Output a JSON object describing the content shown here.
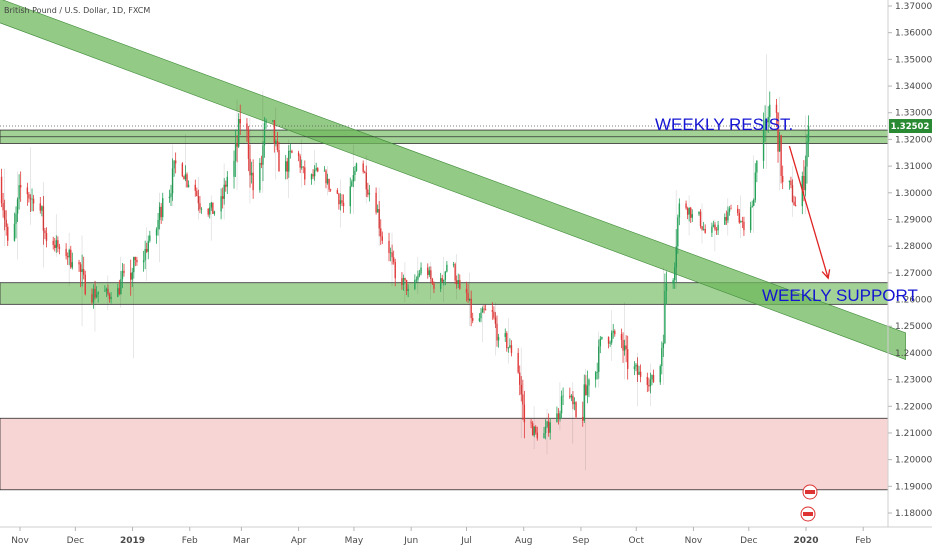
{
  "chart_data": {
    "type": "candlestick",
    "title": "British Pound / U.S. Dollar, 1D, FXCM",
    "x_ticks": [
      "Nov",
      "Dec",
      "2019",
      "Feb",
      "Mar",
      "Apr",
      "May",
      "Jun",
      "Jul",
      "Aug",
      "Sep",
      "Oct",
      "Nov",
      "Dec",
      "2020",
      "Feb"
    ],
    "y_ticks": [
      "1.37000",
      "1.36000",
      "1.35000",
      "1.34000",
      "1.33000",
      "1.32000",
      "1.31000",
      "1.30000",
      "1.29000",
      "1.28000",
      "1.27000",
      "1.26000",
      "1.25000",
      "1.24000",
      "1.23000",
      "1.22000",
      "1.21000",
      "1.20000",
      "1.19000",
      "1.18000"
    ],
    "ylim": [
      1.175,
      1.372
    ],
    "last_price": "1.32502",
    "last_price_value": 1.32502,
    "resistance_line_value": 1.321,
    "zones": [
      {
        "name": "weekly-resistance-zone",
        "from": 1.3185,
        "to": 1.3235,
        "color": "#7cbf6a"
      },
      {
        "name": "weekly-support-zone",
        "from": 1.2582,
        "to": 1.2663,
        "color": "#7cbf6a"
      },
      {
        "name": "demand-zone",
        "from": 1.1887,
        "to": 1.2155,
        "color": "#f4c7c7"
      }
    ],
    "trend_channel": {
      "color": "#6fb85c",
      "start_date": "2018-10-16",
      "start_top": 1.374,
      "start_bottom": 1.365,
      "end_date": "2020-02-24",
      "end_top": 1.2475,
      "end_bottom": 1.2375
    },
    "forecast_arrow": {
      "from_date": "2019-12-23",
      "from_value": 1.3175,
      "to_date": "2020-01-13",
      "to_value": 1.268,
      "color": "#e02424"
    },
    "annotations": [
      "WEEKLY RESIST.",
      "WEEKLY SUPPORT"
    ],
    "candles_approx": [
      [
        "2018-10-22",
        1.306,
        1.309,
        1.28,
        1.282
      ],
      [
        "2018-10-29",
        1.282,
        1.308,
        1.275,
        1.302
      ],
      [
        "2018-11-05",
        1.302,
        1.317,
        1.288,
        1.296
      ],
      [
        "2018-11-12",
        1.296,
        1.304,
        1.272,
        1.282
      ],
      [
        "2018-11-19",
        1.282,
        1.292,
        1.276,
        1.279
      ],
      [
        "2018-11-26",
        1.279,
        1.285,
        1.265,
        1.274
      ],
      [
        "2018-12-03",
        1.274,
        1.284,
        1.25,
        1.262
      ],
      [
        "2018-12-10",
        1.262,
        1.267,
        1.248,
        1.263
      ],
      [
        "2018-12-17",
        1.263,
        1.269,
        1.256,
        1.261
      ],
      [
        "2018-12-24",
        1.261,
        1.276,
        1.257,
        1.27
      ],
      [
        "2018-12-31",
        1.27,
        1.276,
        1.238,
        1.274
      ],
      [
        "2019-01-07",
        1.274,
        1.287,
        1.267,
        1.284
      ],
      [
        "2019-01-14",
        1.284,
        1.3,
        1.274,
        1.298
      ],
      [
        "2019-01-21",
        1.298,
        1.318,
        1.295,
        1.311
      ],
      [
        "2019-01-28",
        1.311,
        1.322,
        1.302,
        1.303
      ],
      [
        "2019-02-04",
        1.303,
        1.306,
        1.29,
        1.294
      ],
      [
        "2019-02-11",
        1.294,
        1.299,
        1.282,
        1.293
      ],
      [
        "2019-02-18",
        1.293,
        1.311,
        1.29,
        1.306
      ],
      [
        "2019-02-25",
        1.306,
        1.335,
        1.301,
        1.326
      ],
      [
        "2019-03-04",
        1.326,
        1.328,
        1.296,
        1.301
      ],
      [
        "2019-03-11",
        1.301,
        1.338,
        1.3,
        1.327
      ],
      [
        "2019-03-18",
        1.327,
        1.332,
        1.305,
        1.308
      ],
      [
        "2019-03-25",
        1.308,
        1.32,
        1.298,
        1.315
      ],
      [
        "2019-04-01",
        1.315,
        1.32,
        1.302,
        1.305
      ],
      [
        "2019-04-08",
        1.305,
        1.316,
        1.303,
        1.308
      ],
      [
        "2019-04-15",
        1.308,
        1.31,
        1.299,
        1.301
      ],
      [
        "2019-04-22",
        1.301,
        1.305,
        1.287,
        1.295
      ],
      [
        "2019-04-29",
        1.295,
        1.318,
        1.292,
        1.311
      ],
      [
        "2019-05-06",
        1.311,
        1.314,
        1.296,
        1.3
      ],
      [
        "2019-05-13",
        1.3,
        1.302,
        1.28,
        1.282
      ],
      [
        "2019-05-20",
        1.282,
        1.285,
        1.265,
        1.268
      ],
      [
        "2019-05-27",
        1.268,
        1.274,
        1.259,
        1.264
      ],
      [
        "2019-06-03",
        1.264,
        1.276,
        1.262,
        1.272
      ],
      [
        "2019-06-10",
        1.272,
        1.274,
        1.26,
        1.264
      ],
      [
        "2019-06-17",
        1.264,
        1.276,
        1.259,
        1.273
      ],
      [
        "2019-06-24",
        1.273,
        1.277,
        1.26,
        1.264
      ],
      [
        "2019-07-01",
        1.264,
        1.27,
        1.25,
        1.252
      ],
      [
        "2019-07-08",
        1.252,
        1.258,
        1.244,
        1.256
      ],
      [
        "2019-07-15",
        1.256,
        1.259,
        1.239,
        1.246
      ],
      [
        "2019-07-22",
        1.246,
        1.253,
        1.236,
        1.24
      ],
      [
        "2019-07-29",
        1.24,
        1.242,
        1.208,
        1.214
      ],
      [
        "2019-08-05",
        1.214,
        1.22,
        1.204,
        1.208
      ],
      [
        "2019-08-12",
        1.208,
        1.219,
        1.202,
        1.214
      ],
      [
        "2019-08-19",
        1.214,
        1.229,
        1.211,
        1.224
      ],
      [
        "2019-08-26",
        1.224,
        1.229,
        1.206,
        1.216
      ],
      [
        "2019-09-02",
        1.216,
        1.234,
        1.196,
        1.23
      ],
      [
        "2019-09-09",
        1.23,
        1.248,
        1.227,
        1.246
      ],
      [
        "2019-09-16",
        1.246,
        1.256,
        1.237,
        1.247
      ],
      [
        "2019-09-23",
        1.247,
        1.259,
        1.23,
        1.234
      ],
      [
        "2019-09-30",
        1.234,
        1.24,
        1.22,
        1.231
      ],
      [
        "2019-10-07",
        1.231,
        1.236,
        1.22,
        1.229
      ],
      [
        "2019-10-14",
        1.229,
        1.272,
        1.228,
        1.266
      ],
      [
        "2019-10-21",
        1.266,
        1.301,
        1.264,
        1.296
      ],
      [
        "2019-10-28",
        1.296,
        1.299,
        1.284,
        1.292
      ],
      [
        "2019-11-04",
        1.292,
        1.296,
        1.281,
        1.285
      ],
      [
        "2019-11-11",
        1.285,
        1.29,
        1.278,
        1.288
      ],
      [
        "2019-11-18",
        1.288,
        1.298,
        1.284,
        1.294
      ],
      [
        "2019-11-25",
        1.294,
        1.299,
        1.283,
        1.286
      ],
      [
        "2019-12-02",
        1.286,
        1.314,
        1.285,
        1.312
      ],
      [
        "2019-12-09",
        1.312,
        1.352,
        1.309,
        1.333
      ],
      [
        "2019-12-16",
        1.333,
        1.336,
        1.301,
        1.304
      ],
      [
        "2019-12-23",
        1.304,
        1.31,
        1.291,
        1.295
      ],
      [
        "2019-12-30",
        1.295,
        1.329,
        1.292,
        1.325
      ]
    ]
  }
}
